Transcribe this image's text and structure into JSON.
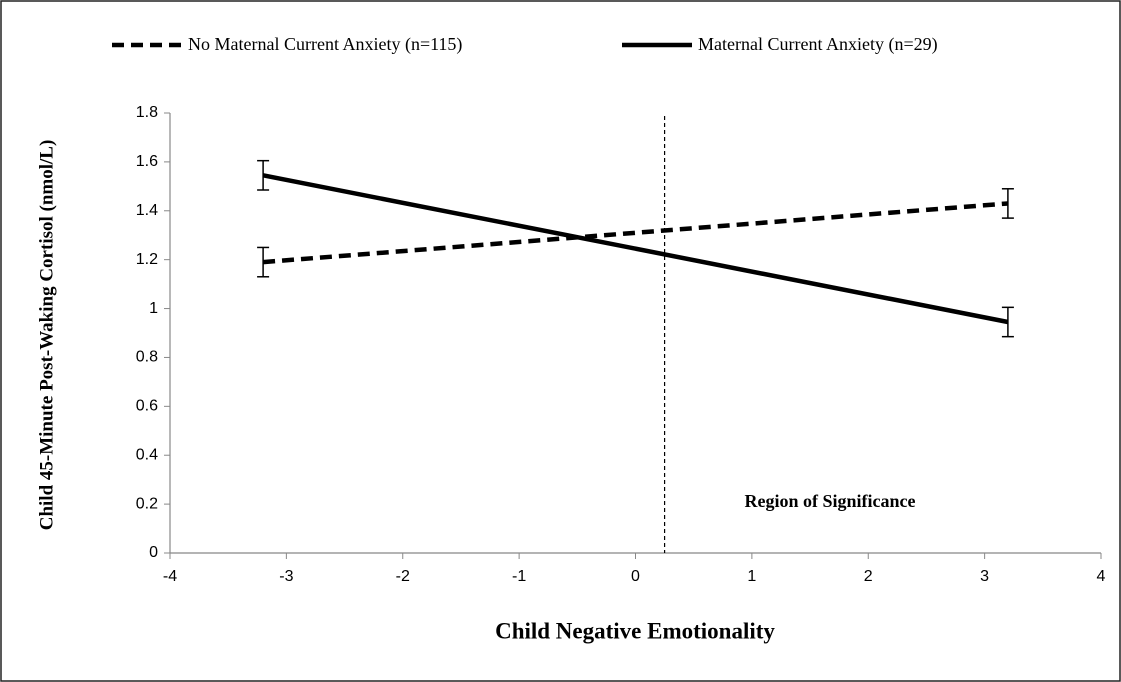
{
  "chart_data": {
    "type": "line",
    "x_label": "Child Negative Emotionality",
    "y_label": "Child 45-Minute Post-Waking Cortisol (nmol/L)",
    "x": [
      -3.2,
      3.2
    ],
    "series": [
      {
        "name": "No Maternal Current Anxiety (n=115)",
        "color": "#000000",
        "line_style": "dashed",
        "values": [
          1.19,
          1.43
        ],
        "errors": [
          0.06,
          0.06
        ]
      },
      {
        "name": "Maternal Current Anxiety (n=29)",
        "color": "#000000",
        "line_style": "solid",
        "values": [
          1.545,
          0.945
        ],
        "errors": [
          0.06,
          0.06
        ]
      }
    ],
    "xlim": [
      -4,
      4
    ],
    "xticks": [
      -4,
      -3,
      -2,
      -1,
      0,
      1,
      2,
      3,
      4
    ],
    "ylim": [
      0,
      1.8
    ],
    "yticks": [
      0,
      0.2,
      0.4,
      0.6,
      0.8,
      1,
      1.2,
      1.4,
      1.6,
      1.8
    ],
    "region_line_x": 0.25,
    "annotation": "Region of Significance",
    "legend": "top"
  }
}
